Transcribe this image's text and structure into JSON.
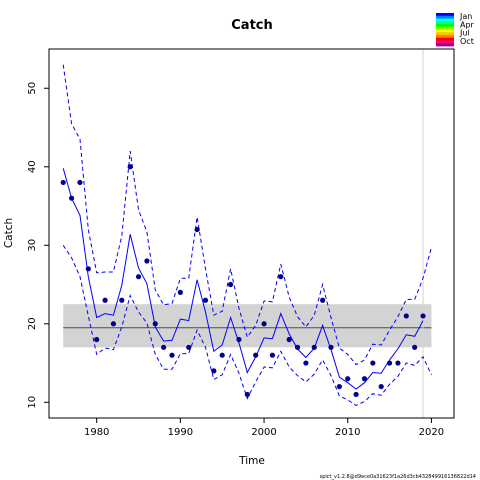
{
  "chart_data": {
    "type": "line",
    "title": "Catch",
    "xlabel": "Time",
    "ylabel": "Catch",
    "xlim": [
      1974.3,
      2022.7
    ],
    "ylim": [
      8,
      55
    ],
    "x_ticks": [
      1980,
      1990,
      2000,
      2010,
      2020
    ],
    "y_ticks": [
      10,
      20,
      30,
      40,
      50
    ],
    "reference_band": {
      "lower": 17.0,
      "upper": 22.5,
      "color": "#d3d3d3"
    },
    "reference_line": {
      "y": 19.5,
      "color": "#4d4d4d"
    },
    "vertical_marker": {
      "x": 2019,
      "color": "#d3d3d3"
    },
    "legend": {
      "placement": "top-right",
      "entries": [
        "Jan",
        "Apr",
        "Jul",
        "Oct"
      ]
    },
    "footer": "spict_v1.2.8@d9ece0a31623f1a26d3cb432849916136822d14",
    "observations": {
      "color": "#00008b",
      "x": [
        1976,
        1977,
        1978,
        1979,
        1980,
        1981,
        1982,
        1983,
        1984,
        1985,
        1986,
        1987,
        1988,
        1989,
        1990,
        1991,
        1992,
        1993,
        1994,
        1995,
        1996,
        1997,
        1998,
        1999,
        2000,
        2001,
        2002,
        2003,
        2004,
        2005,
        2006,
        2007,
        2008,
        2009,
        2010,
        2011,
        2012,
        2013,
        2014,
        2015,
        2016,
        2017,
        2018,
        2019
      ],
      "y": [
        38,
        36,
        38,
        27,
        18,
        23,
        20,
        23,
        40,
        26,
        28,
        20,
        17,
        16,
        24,
        17,
        32,
        23,
        14,
        16,
        25,
        18,
        11,
        16,
        20,
        16,
        26,
        18,
        17,
        15,
        17,
        23,
        17,
        12,
        13,
        11,
        13,
        15,
        12,
        15,
        15,
        21,
        17,
        21
      ]
    },
    "series": [
      {
        "name": "estimate",
        "style": "solid",
        "color": "#0000ff",
        "x": [
          1976,
          1977,
          1978,
          1979,
          1980,
          1981,
          1982,
          1983,
          1984,
          1985,
          1986,
          1987,
          1988,
          1989,
          1990,
          1991,
          1992,
          1993,
          1994,
          1995,
          1996,
          1997,
          1998,
          1999,
          2000,
          2001,
          2002,
          2003,
          2004,
          2005,
          2006,
          2007,
          2008,
          2009,
          2010,
          2011,
          2012,
          2013,
          2014,
          2015,
          2016,
          2017,
          2018,
          2019
        ],
        "y": [
          39.8,
          36.0,
          33.8,
          26.0,
          20.8,
          21.3,
          21.1,
          24.9,
          31.4,
          27.1,
          25.1,
          19.6,
          17.8,
          17.9,
          20.6,
          20.4,
          25.6,
          21.5,
          16.5,
          17.3,
          20.8,
          17.6,
          13.8,
          15.8,
          18.2,
          18.1,
          21.3,
          18.7,
          16.8,
          15.7,
          16.9,
          19.8,
          16.7,
          13.2,
          12.5,
          11.7,
          12.5,
          13.8,
          13.7,
          15.4,
          16.8,
          18.6,
          18.4,
          20.4
        ]
      },
      {
        "name": "upper",
        "style": "dashed",
        "color": "#0000ff",
        "x": [
          1976,
          1977,
          1978,
          1979,
          1980,
          1981,
          1982,
          1983,
          1984,
          1985,
          1986,
          1987,
          1988,
          1989,
          1990,
          1991,
          1992,
          1993,
          1994,
          1995,
          1996,
          1997,
          1998,
          1999,
          2000,
          2001,
          2002,
          2003,
          2004,
          2005,
          2006,
          2007,
          2008,
          2009,
          2010,
          2011,
          2012,
          2013,
          2014,
          2015,
          2016,
          2017,
          2018,
          2019,
          2020
        ],
        "y": [
          53.0,
          45.5,
          43.5,
          32.0,
          26.5,
          26.6,
          26.6,
          31.2,
          42.0,
          34.5,
          31.7,
          24.3,
          22.4,
          22.6,
          25.8,
          25.8,
          33.6,
          27.0,
          21.1,
          21.6,
          27.0,
          22.0,
          18.3,
          19.8,
          22.9,
          22.8,
          27.6,
          23.4,
          20.9,
          19.6,
          21.1,
          25.0,
          20.8,
          16.9,
          16.1,
          14.8,
          15.4,
          17.4,
          17.3,
          19.2,
          20.9,
          23.1,
          23.1,
          25.8,
          29.7
        ]
      },
      {
        "name": "lower",
        "style": "dashed",
        "color": "#0000ff",
        "x": [
          1976,
          1977,
          1978,
          1979,
          1980,
          1981,
          1982,
          1983,
          1984,
          1985,
          1986,
          1987,
          1988,
          1989,
          1990,
          1991,
          1992,
          1993,
          1994,
          1995,
          1996,
          1997,
          1998,
          1999,
          2000,
          2001,
          2002,
          2003,
          2004,
          2005,
          2006,
          2007,
          2008,
          2009,
          2010,
          2011,
          2012,
          2013,
          2014,
          2015,
          2016,
          2017,
          2018,
          2019,
          2020
        ],
        "y": [
          30.0,
          28.4,
          26.0,
          21.0,
          16.1,
          16.9,
          16.7,
          19.6,
          23.6,
          21.5,
          20.1,
          16.1,
          14.2,
          14.2,
          16.2,
          16.2,
          19.2,
          17.0,
          12.9,
          13.5,
          16.1,
          13.7,
          10.5,
          12.6,
          14.5,
          14.4,
          16.5,
          14.5,
          13.4,
          12.6,
          13.6,
          15.4,
          13.4,
          10.8,
          10.3,
          9.6,
          10.1,
          11.1,
          10.9,
          12.3,
          13.3,
          15.0,
          14.7,
          15.8,
          13.5
        ]
      }
    ]
  }
}
